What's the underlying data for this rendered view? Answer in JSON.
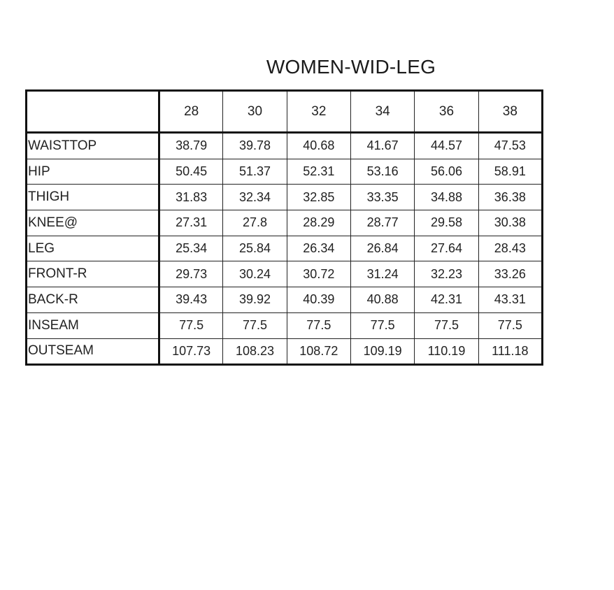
{
  "title": "WOMEN-WID-LEG",
  "table": {
    "columns": [
      "28",
      "30",
      "32",
      "34",
      "36",
      "38"
    ],
    "rows": [
      {
        "label": "WAISTTOP",
        "values": [
          "38.79",
          "39.78",
          "40.68",
          "41.67",
          "44.57",
          "47.53"
        ]
      },
      {
        "label": "HIP",
        "values": [
          "50.45",
          "51.37",
          "52.31",
          "53.16",
          "56.06",
          "58.91"
        ]
      },
      {
        "label": "THIGH",
        "values": [
          "31.83",
          "32.34",
          "32.85",
          "33.35",
          "34.88",
          "36.38"
        ]
      },
      {
        "label": "KNEE@",
        "values": [
          "27.31",
          "27.8",
          "28.29",
          "28.77",
          "29.58",
          "30.38"
        ]
      },
      {
        "label": "LEG",
        "values": [
          "25.34",
          "25.84",
          "26.34",
          "26.84",
          "27.64",
          "28.43"
        ]
      },
      {
        "label": "FRONT-R",
        "values": [
          "29.73",
          "30.24",
          "30.72",
          "31.24",
          "32.23",
          "33.26"
        ]
      },
      {
        "label": "BACK-R",
        "values": [
          "39.43",
          "39.92",
          "40.39",
          "40.88",
          "42.31",
          "43.31"
        ]
      },
      {
        "label": "INSEAM",
        "values": [
          "77.5",
          "77.5",
          "77.5",
          "77.5",
          "77.5",
          "77.5"
        ]
      },
      {
        "label": "OUTSEAM",
        "values": [
          "107.73",
          "108.23",
          "108.72",
          "109.19",
          "110.19",
          "111.18"
        ]
      }
    ]
  }
}
